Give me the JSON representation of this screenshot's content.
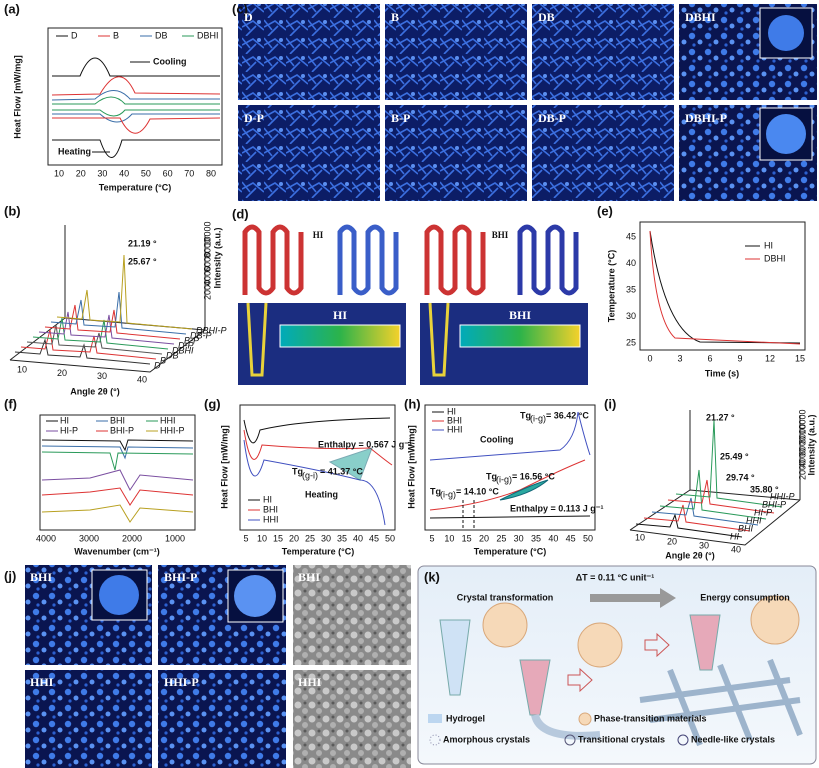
{
  "a": {
    "label": "(a)",
    "legend": [
      "D",
      "B",
      "DB",
      "DBHI"
    ],
    "cooling": "Cooling",
    "heating": "Heating",
    "ylabel": "Heat Flow [mW/mg]",
    "xlabel": "Temperature (°C)",
    "xticks": [
      "10",
      "20",
      "30",
      "40",
      "50",
      "60",
      "70",
      "80"
    ]
  },
  "b": {
    "label": "(b)",
    "peaks": [
      "21.19 °",
      "25.67 °"
    ],
    "xlabel": "Angle 2θ (°)",
    "xticks": [
      "10",
      "20",
      "30",
      "40"
    ],
    "series": [
      "D",
      "B",
      "DB",
      "DBHI",
      "D-P",
      "B-P",
      "DB-P",
      "DBHI-P"
    ],
    "zlabel": "Intensity (a.u.)",
    "zticks": [
      "2000",
      "4000",
      "6000",
      "8000",
      "10000"
    ]
  },
  "c": {
    "label": "(c)",
    "images": [
      "D",
      "B",
      "DB",
      "DBHI",
      "D-P",
      "B-P",
      "DB-P",
      "DBHI-P"
    ]
  },
  "d": {
    "label": "(d)",
    "left": "HI",
    "right": "BHI"
  },
  "e": {
    "label": "(e)",
    "ylabel": "Temperature (°C)",
    "xlabel": "Time (s)",
    "yticks": [
      "25",
      "30",
      "35",
      "40",
      "45"
    ],
    "xticks": [
      "0",
      "3",
      "6",
      "9",
      "12",
      "15"
    ],
    "legend": [
      "HI",
      "DBHI"
    ]
  },
  "f": {
    "label": "(f)",
    "legend": [
      "HI",
      "BHI",
      "HHI",
      "HI-P",
      "BHI-P",
      "HHI-P"
    ],
    "xlabel": "Wavenumber (cm⁻¹)",
    "xticks": [
      "4000",
      "3000",
      "2000",
      "1000"
    ]
  },
  "g": {
    "label": "(g)",
    "ylabel": "Heat Flow [mW/mg]",
    "xlabel": "Temperature (°C)",
    "xticks": [
      "5",
      "10",
      "15",
      "20",
      "25",
      "30",
      "35",
      "40",
      "45",
      "50"
    ],
    "legend": [
      "HI",
      "BHI",
      "HHI"
    ],
    "enthalpy": "Enthalpy = 0.567 J g⁻¹",
    "tg": "Tg",
    "tg_sub": "(g-i)",
    "tg_val": "= 41.37 °C",
    "heating": "Heating"
  },
  "h": {
    "label": "(h)",
    "ylabel": "Heat Flow [mW/mg]",
    "xlabel": "Temperature (°C)",
    "xticks": [
      "5",
      "10",
      "15",
      "20",
      "25",
      "30",
      "35",
      "40",
      "45",
      "50"
    ],
    "legend": [
      "HI",
      "BHI",
      "HHI"
    ],
    "tg": "Tg",
    "tg_sub": "(i-g)",
    "tg1": "= 36.42 °C",
    "tg2": "= 16.56 °C",
    "tg3": "= 14.10 °C",
    "cooling": "Cooling",
    "enthalpy": "Enthalpy = 0.113 J g⁻¹"
  },
  "i": {
    "label": "(i)",
    "peaks": [
      "21.27 °",
      "25.49 °",
      "29.74 °",
      "35.80 °"
    ],
    "series": [
      "HHI-P",
      "BHI-P",
      "HI-P",
      "HHI",
      "BHI",
      "HI"
    ],
    "xticks": [
      "10",
      "20",
      "30",
      "40"
    ],
    "xlabel": "Angle 2θ (°)",
    "zlabel": "Intensity (a.u.)",
    "zticks": [
      "2000",
      "4000",
      "6000",
      "8000",
      "10000"
    ]
  },
  "j": {
    "label": "(j)",
    "images": [
      "BHI",
      "BHI-P",
      "BHI",
      "HHI",
      "HHI-P",
      "HHI"
    ]
  },
  "k": {
    "label": "(k)",
    "delta": "ΔT = 0.11 °C unit⁻¹",
    "left": "Crystal transformation",
    "right": "Energy consumption",
    "legend": [
      "Hydrogel",
      "Phase-transition materials",
      "Amorphous crystals",
      "Transitional crystals",
      "Needle-like crystals"
    ]
  }
}
